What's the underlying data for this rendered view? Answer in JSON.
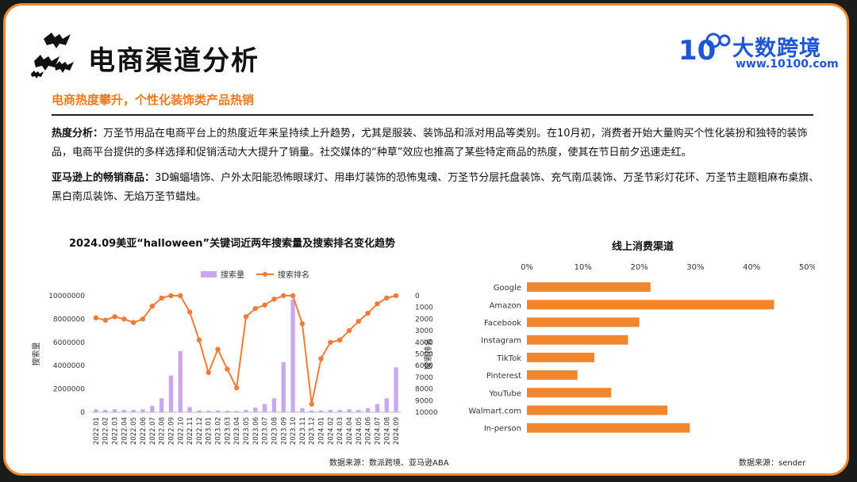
{
  "header": {
    "title": "电商渠道分析",
    "logo_name": "大数跨境",
    "logo_url": "www.10100.com",
    "logo_mark": "10"
  },
  "subtitle": "电商热度攀升，个性化装饰类产品热销",
  "paragraphs": [
    {
      "label": "热度分析：",
      "text": "万圣节用品在电商平台上的热度近年来呈持续上升趋势，尤其是服装、装饰品和派对用品等类别。在10月初，消费者开始大量购买个性化装扮和独特的装饰品，电商平台提供的多样选择和促销活动大大提升了销量。社交媒体的“种草”效应也推高了某些特定商品的热度，使其在节日前夕迅速走红。"
    },
    {
      "label": "亚马逊上的畅销商品：",
      "text": "3D蝙蝠墙饰、户外太阳能恐怖眼球灯、用串灯装饰的恐怖鬼魂、万圣节分层托盘装饰、充气南瓜装饰、万圣节彩灯花环、万圣节主题粗麻布桌旗、黑白南瓜装饰、无焰万圣节蜡烛。"
    }
  ],
  "chart_data": [
    {
      "type": "bar+line",
      "title": "2024.09美亚“halloween”关键词近两年搜索量及搜索排名变化趋势",
      "ylabel": "搜索量",
      "y2label": "搜索排名",
      "ylim": [
        0,
        10000000
      ],
      "yticks": [
        "0",
        "2000000",
        "4000000",
        "6000000",
        "8000000",
        "10000000"
      ],
      "y2lim": [
        10000,
        0
      ],
      "y2ticks": [
        "0",
        "1000",
        "2000",
        "3000",
        "4000",
        "5000",
        "6000",
        "7000",
        "8000",
        "9000",
        "10000"
      ],
      "legend": [
        "搜索量",
        "搜索排名"
      ],
      "legend_position": "top",
      "x": [
        "2022.01",
        "2022.02",
        "2022.03",
        "2022.04",
        "2022.05",
        "2022.06",
        "2022.07",
        "2022.08",
        "2022.09",
        "2022.10",
        "2022.11",
        "2022.12",
        "2023.01",
        "2023.02",
        "2023.03",
        "2023.04",
        "2023.05",
        "2023.06",
        "2023.07",
        "2023.08",
        "2023.09",
        "2023.10",
        "2023.11",
        "2023.12",
        "2024.01",
        "2024.02",
        "2024.03",
        "2024.04",
        "2024.05",
        "2024.06",
        "2024.07",
        "2024.08",
        "2024.09"
      ],
      "series": [
        {
          "name": "搜索量",
          "kind": "bar",
          "color": "#c9a8f0",
          "values": [
            250000,
            200000,
            250000,
            200000,
            200000,
            250000,
            550000,
            1200000,
            3150000,
            5250000,
            450000,
            150000,
            120000,
            150000,
            120000,
            100000,
            200000,
            400000,
            700000,
            1200000,
            4300000,
            9700000,
            350000,
            150000,
            150000,
            200000,
            200000,
            250000,
            200000,
            350000,
            700000,
            1200000,
            3850000
          ]
        },
        {
          "name": "搜索排名",
          "kind": "line",
          "color": "#f07c3a",
          "values": [
            1900,
            2100,
            1800,
            2000,
            2300,
            2000,
            900,
            200,
            0,
            0,
            1400,
            3800,
            6600,
            4600,
            6300,
            7900,
            1800,
            1100,
            800,
            300,
            0,
            0,
            2400,
            9300,
            5400,
            4000,
            3800,
            3000,
            2200,
            1500,
            700,
            200,
            0
          ]
        }
      ],
      "source": "数据来源：数派跨境、亚马逊ABA"
    },
    {
      "type": "bar",
      "orientation": "horizontal",
      "title": "线上消费渠道",
      "categories": [
        "Google",
        "Amazon",
        "Facebook",
        "Instagram",
        "TikTok",
        "Pinterest",
        "YouTube",
        "Walmart.com",
        "In-person"
      ],
      "values": [
        22,
        44,
        20,
        18,
        12,
        9,
        15,
        25,
        29
      ],
      "xlim": [
        0,
        50
      ],
      "xticks": [
        "0%",
        "10%",
        "20%",
        "30%",
        "40%",
        "50%"
      ],
      "color": "#f0872e",
      "source": "数据来源：sender"
    }
  ]
}
